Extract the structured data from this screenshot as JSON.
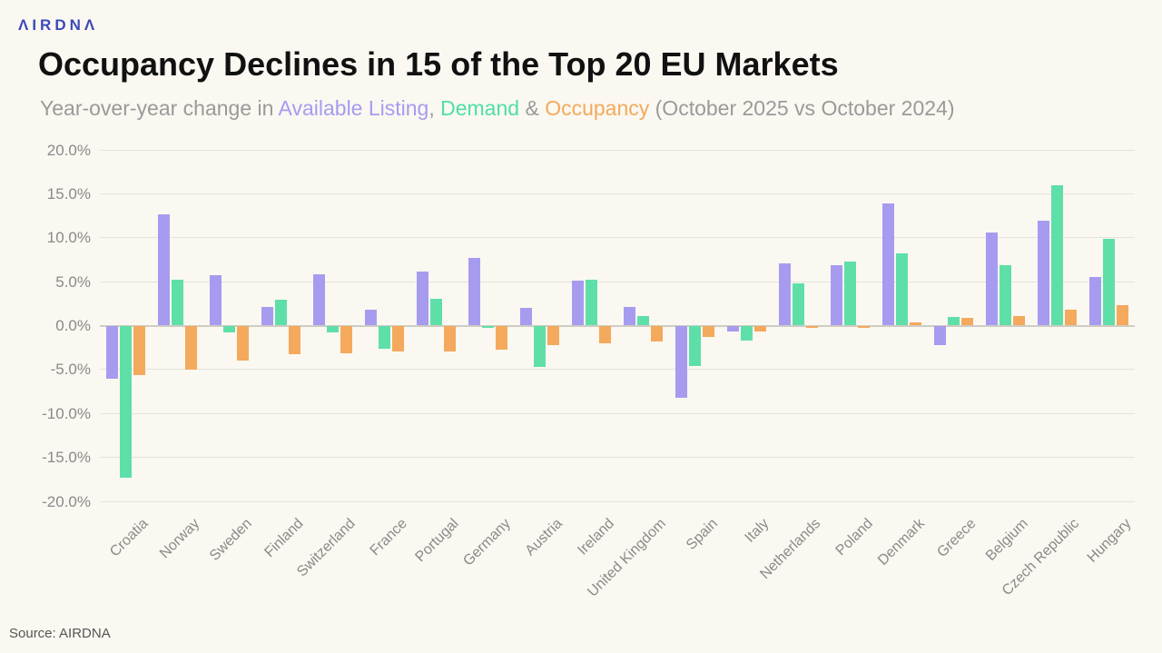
{
  "logo": {
    "text": "ΛIRDNΛ"
  },
  "title": "Occupancy Declines in 15 of the Top 20 EU Markets",
  "subtitle": {
    "prefix": "Year-over-year change in ",
    "series1": "Available Listing",
    "sep1": ", ",
    "series2": "Demand",
    "sep2": " & ",
    "series3": "Occupancy",
    "suffix": " (October 2025 vs October 2024)"
  },
  "footer": {
    "source": "Source: AIRDNA"
  },
  "colors": {
    "available_listing": "#a79bf0",
    "demand": "#5fdfa8",
    "occupancy": "#f4a95c",
    "background": "#faf8f1",
    "grid": "#e6e3da",
    "zero_line": "#cfccc3",
    "axis_text": "#8a8a8a"
  },
  "chart_data": {
    "type": "bar",
    "title": "Occupancy Declines in 15 of the Top 20 EU Markets",
    "subtitle": "Year-over-year change in Available Listing, Demand & Occupancy (October 2025 vs October 2024)",
    "categories": [
      "Croatia",
      "Norway",
      "Sweden",
      "Finland",
      "Switzerland",
      "France",
      "Portugal",
      "Germany",
      "Austria",
      "Ireland",
      "United Kingdom",
      "Spain",
      "Italy",
      "Netherlands",
      "Poland",
      "Denmark",
      "Greece",
      "Belgium",
      "Czech Republic",
      "Hungary"
    ],
    "series": [
      {
        "name": "Available Listing",
        "color_key": "available_listing",
        "values": [
          -6.0,
          12.7,
          5.7,
          2.1,
          5.8,
          1.8,
          6.2,
          7.7,
          2.0,
          5.1,
          2.1,
          -8.2,
          -0.7,
          7.1,
          6.9,
          13.9,
          -2.2,
          10.6,
          11.9,
          5.5
        ]
      },
      {
        "name": "Demand",
        "color_key": "demand",
        "values": [
          -17.3,
          5.2,
          -0.8,
          2.9,
          -0.8,
          -2.6,
          3.0,
          -0.2,
          -4.7,
          5.2,
          1.1,
          -4.6,
          -1.7,
          4.8,
          7.3,
          8.2,
          1.0,
          6.9,
          16.0,
          9.9
        ]
      },
      {
        "name": "Occupancy",
        "color_key": "occupancy",
        "values": [
          -5.6,
          -5.0,
          -4.0,
          -3.3,
          -3.2,
          -2.9,
          -2.9,
          -2.7,
          -2.2,
          -2.0,
          -1.8,
          -1.3,
          -0.7,
          -0.3,
          -0.3,
          0.4,
          0.9,
          1.1,
          1.8,
          2.3
        ]
      }
    ],
    "ylim": [
      -20,
      20
    ],
    "ytick_step": 5,
    "ytick_labels": [
      "20.0%",
      "15.0%",
      "10.0%",
      "5.0%",
      "0.0%",
      "-5.0%",
      "-10.0%",
      "-15.0%",
      "-20.0%"
    ],
    "grid": true,
    "legend_position": "in-subtitle"
  }
}
